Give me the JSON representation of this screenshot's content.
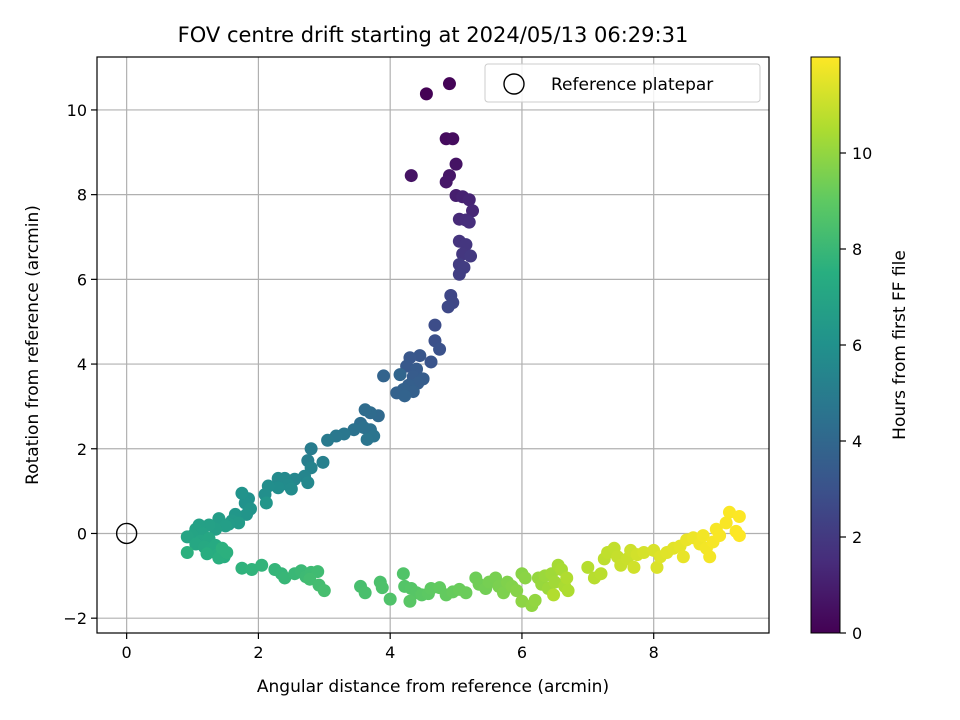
{
  "chart_data": {
    "type": "scatter",
    "title": "FOV centre drift starting at 2024/05/13 06:29:31",
    "xlabel": "Angular distance from reference (arcmin)",
    "ylabel": "Rotation from reference (arcmin)",
    "xlim": [
      -0.45,
      9.75
    ],
    "ylim": [
      -2.35,
      11.25
    ],
    "xticks": [
      0,
      2,
      4,
      6,
      8
    ],
    "yticks": [
      -2,
      0,
      2,
      4,
      6,
      8,
      10
    ],
    "grid": true,
    "legend": {
      "position": "upper-right",
      "entries": [
        "Reference platepar"
      ]
    },
    "reference_point": {
      "x": 0,
      "y": 0,
      "label": "Reference platepar"
    },
    "colorbar": {
      "label": "Hours from first FF file",
      "colormap": "viridis",
      "range": [
        0,
        12.0
      ],
      "ticks": [
        0,
        2,
        4,
        6,
        8,
        10
      ]
    },
    "series": [
      {
        "name": "",
        "points": [
          [
            4.55,
            10.38,
            0.05
          ],
          [
            4.9,
            10.62,
            0.1
          ],
          [
            4.85,
            9.32,
            0.35
          ],
          [
            4.95,
            9.32,
            0.4
          ],
          [
            5.0,
            8.72,
            0.6
          ],
          [
            4.32,
            8.45,
            0.6
          ],
          [
            4.9,
            8.45,
            0.7
          ],
          [
            4.85,
            8.3,
            0.75
          ],
          [
            5.0,
            7.98,
            1.0
          ],
          [
            5.1,
            7.95,
            1.1
          ],
          [
            5.2,
            7.88,
            1.2
          ],
          [
            5.25,
            7.62,
            1.3
          ],
          [
            5.05,
            7.42,
            1.4
          ],
          [
            5.15,
            7.4,
            1.5
          ],
          [
            5.2,
            7.35,
            1.55
          ],
          [
            5.05,
            6.9,
            1.8
          ],
          [
            5.15,
            6.82,
            1.85
          ],
          [
            5.1,
            6.6,
            1.9
          ],
          [
            5.22,
            6.55,
            2.0
          ],
          [
            5.05,
            6.35,
            2.1
          ],
          [
            5.12,
            6.28,
            2.15
          ],
          [
            5.05,
            6.12,
            2.2
          ],
          [
            4.92,
            5.62,
            2.5
          ],
          [
            4.95,
            5.45,
            2.55
          ],
          [
            4.88,
            5.35,
            2.6
          ],
          [
            4.68,
            4.92,
            2.8
          ],
          [
            4.68,
            4.55,
            2.9
          ],
          [
            4.75,
            4.35,
            3.0
          ],
          [
            4.62,
            4.05,
            3.1
          ],
          [
            4.45,
            4.2,
            3.2
          ],
          [
            4.3,
            4.15,
            3.25
          ],
          [
            4.25,
            3.95,
            3.3
          ],
          [
            4.4,
            3.88,
            3.4
          ],
          [
            4.35,
            3.7,
            3.45
          ],
          [
            4.5,
            3.65,
            3.5
          ],
          [
            4.42,
            3.55,
            3.55
          ],
          [
            4.28,
            3.5,
            3.6
          ],
          [
            4.35,
            3.35,
            3.65
          ],
          [
            4.2,
            3.4,
            3.7
          ],
          [
            4.1,
            3.32,
            3.75
          ],
          [
            4.22,
            3.25,
            3.8
          ],
          [
            3.9,
            3.72,
            3.85
          ],
          [
            4.15,
            3.75,
            3.9
          ],
          [
            3.82,
            2.78,
            4.1
          ],
          [
            3.7,
            2.85,
            4.15
          ],
          [
            3.62,
            2.92,
            4.2
          ],
          [
            3.55,
            2.6,
            4.3
          ],
          [
            3.7,
            2.45,
            4.4
          ],
          [
            3.6,
            2.5,
            4.45
          ],
          [
            3.45,
            2.45,
            4.5
          ],
          [
            3.75,
            2.3,
            4.6
          ],
          [
            3.65,
            2.22,
            4.65
          ],
          [
            3.3,
            2.35,
            4.75
          ],
          [
            3.18,
            2.3,
            4.8
          ],
          [
            3.05,
            2.2,
            4.9
          ],
          [
            2.8,
            2.0,
            5.0
          ],
          [
            2.75,
            1.72,
            5.1
          ],
          [
            2.98,
            1.68,
            5.2
          ],
          [
            2.8,
            1.55,
            5.3
          ],
          [
            2.7,
            1.35,
            5.4
          ],
          [
            2.55,
            1.28,
            5.5
          ],
          [
            2.75,
            1.2,
            5.55
          ],
          [
            2.4,
            1.3,
            5.6
          ],
          [
            2.3,
            1.3,
            5.65
          ],
          [
            2.45,
            1.15,
            5.7
          ],
          [
            2.5,
            1.05,
            5.75
          ],
          [
            2.3,
            1.08,
            5.8
          ],
          [
            2.15,
            1.12,
            5.85
          ],
          [
            2.1,
            0.92,
            5.9
          ],
          [
            1.85,
            0.82,
            6.0
          ],
          [
            1.8,
            0.72,
            6.05
          ],
          [
            1.75,
            0.95,
            6.1
          ],
          [
            1.88,
            0.58,
            6.15
          ],
          [
            1.82,
            0.45,
            6.2
          ],
          [
            2.12,
            0.72,
            6.25
          ],
          [
            1.65,
            0.45,
            6.3
          ],
          [
            1.6,
            0.3,
            6.4
          ],
          [
            1.7,
            0.25,
            6.45
          ],
          [
            1.55,
            0.22,
            6.5
          ],
          [
            1.4,
            0.35,
            6.6
          ],
          [
            1.5,
            0.18,
            6.65
          ],
          [
            1.35,
            0.1,
            6.7
          ],
          [
            1.25,
            0.2,
            6.75
          ],
          [
            1.1,
            0.2,
            6.8
          ],
          [
            1.05,
            0.1,
            6.85
          ],
          [
            1.15,
            0.0,
            6.9
          ],
          [
            1.0,
            -0.05,
            6.95
          ],
          [
            0.92,
            -0.08,
            7.0
          ],
          [
            1.12,
            -0.18,
            7.05
          ],
          [
            1.25,
            -0.12,
            7.1
          ],
          [
            1.05,
            -0.25,
            7.15
          ],
          [
            1.18,
            -0.32,
            7.2
          ],
          [
            1.28,
            -0.38,
            7.25
          ],
          [
            1.35,
            -0.28,
            7.3
          ],
          [
            1.45,
            -0.42,
            7.35
          ],
          [
            1.38,
            -0.5,
            7.4
          ],
          [
            1.22,
            -0.48,
            7.45
          ],
          [
            1.48,
            -0.55,
            7.5
          ],
          [
            1.4,
            -0.58,
            7.55
          ],
          [
            1.52,
            -0.45,
            7.6
          ],
          [
            1.45,
            -0.35,
            7.62
          ],
          [
            0.92,
            -0.45,
            7.6
          ],
          [
            1.75,
            -0.82,
            7.7
          ],
          [
            1.9,
            -0.85,
            7.75
          ],
          [
            2.05,
            -0.75,
            7.8
          ],
          [
            2.25,
            -0.85,
            7.85
          ],
          [
            2.35,
            -0.95,
            7.9
          ],
          [
            2.4,
            -1.05,
            7.95
          ],
          [
            2.55,
            -0.95,
            8.0
          ],
          [
            2.65,
            -0.88,
            8.05
          ],
          [
            2.72,
            -1.02,
            8.1
          ],
          [
            2.8,
            -0.92,
            8.15
          ],
          [
            2.9,
            -0.9,
            8.2
          ],
          [
            2.78,
            -1.08,
            8.25
          ],
          [
            2.92,
            -1.22,
            8.3
          ],
          [
            3.0,
            -1.35,
            8.35
          ],
          [
            3.55,
            -1.25,
            8.4
          ],
          [
            3.62,
            -1.4,
            8.45
          ],
          [
            3.85,
            -1.15,
            8.5
          ],
          [
            3.88,
            -1.28,
            8.55
          ],
          [
            4.0,
            -1.55,
            8.6
          ],
          [
            4.2,
            -0.95,
            8.65
          ],
          [
            4.22,
            -1.25,
            8.7
          ],
          [
            4.32,
            -1.3,
            8.75
          ],
          [
            4.4,
            -1.4,
            8.8
          ],
          [
            4.3,
            -1.6,
            8.85
          ],
          [
            4.48,
            -1.45,
            8.9
          ],
          [
            4.58,
            -1.42,
            8.95
          ],
          [
            4.62,
            -1.3,
            9.0
          ],
          [
            4.75,
            -1.28,
            9.05
          ],
          [
            4.85,
            -1.45,
            9.1
          ],
          [
            4.95,
            -1.38,
            9.15
          ],
          [
            5.05,
            -1.32,
            9.2
          ],
          [
            5.15,
            -1.4,
            9.25
          ],
          [
            5.3,
            -1.05,
            9.3
          ],
          [
            5.35,
            -1.2,
            9.35
          ],
          [
            5.45,
            -1.3,
            9.4
          ],
          [
            5.5,
            -1.15,
            9.45
          ],
          [
            5.6,
            -1.05,
            9.5
          ],
          [
            5.65,
            -1.25,
            9.55
          ],
          [
            5.72,
            -1.4,
            9.6
          ],
          [
            5.78,
            -1.15,
            9.65
          ],
          [
            5.85,
            -1.25,
            9.7
          ],
          [
            5.92,
            -1.35,
            9.75
          ],
          [
            6.0,
            -0.95,
            9.8
          ],
          [
            6.05,
            -1.05,
            9.85
          ],
          [
            6.0,
            -1.6,
            9.9
          ],
          [
            6.15,
            -1.7,
            9.95
          ],
          [
            6.2,
            -1.58,
            10.0
          ],
          [
            6.25,
            -1.05,
            10.05
          ],
          [
            6.3,
            -1.2,
            10.1
          ],
          [
            6.35,
            -1.0,
            10.15
          ],
          [
            6.4,
            -1.3,
            10.2
          ],
          [
            6.45,
            -0.95,
            10.25
          ],
          [
            6.5,
            -1.15,
            10.3
          ],
          [
            6.55,
            -0.75,
            10.35
          ],
          [
            6.6,
            -0.85,
            10.4
          ],
          [
            6.65,
            -1.25,
            10.45
          ],
          [
            6.7,
            -1.35,
            10.5
          ],
          [
            6.68,
            -1.05,
            10.55
          ],
          [
            6.48,
            -1.45,
            10.6
          ],
          [
            7.0,
            -0.8,
            10.65
          ],
          [
            7.1,
            -1.05,
            10.7
          ],
          [
            7.2,
            -0.95,
            10.75
          ],
          [
            7.25,
            -0.6,
            10.8
          ],
          [
            7.3,
            -0.45,
            10.85
          ],
          [
            7.4,
            -0.35,
            10.9
          ],
          [
            7.45,
            -0.55,
            10.95
          ],
          [
            7.5,
            -0.75,
            11.0
          ],
          [
            7.6,
            -0.6,
            11.05
          ],
          [
            7.65,
            -0.4,
            11.1
          ],
          [
            7.7,
            -0.8,
            11.15
          ],
          [
            7.75,
            -0.5,
            11.2
          ],
          [
            7.85,
            -0.45,
            11.25
          ],
          [
            8.0,
            -0.4,
            11.3
          ],
          [
            8.05,
            -0.8,
            11.35
          ],
          [
            8.1,
            -0.55,
            11.4
          ],
          [
            8.2,
            -0.45,
            11.45
          ],
          [
            8.3,
            -0.35,
            11.5
          ],
          [
            8.4,
            -0.3,
            11.55
          ],
          [
            8.45,
            -0.55,
            11.6
          ],
          [
            8.5,
            -0.15,
            11.65
          ],
          [
            8.6,
            -0.1,
            11.7
          ],
          [
            8.7,
            -0.25,
            11.75
          ],
          [
            8.75,
            -0.05,
            11.8
          ],
          [
            8.8,
            -0.35,
            11.82
          ],
          [
            8.85,
            -0.55,
            11.84
          ],
          [
            8.9,
            -0.2,
            11.86
          ],
          [
            8.95,
            0.1,
            11.88
          ],
          [
            9.0,
            -0.05,
            11.9
          ],
          [
            9.1,
            0.25,
            11.92
          ],
          [
            9.15,
            0.5,
            11.94
          ],
          [
            9.25,
            0.05,
            11.96
          ],
          [
            9.3,
            0.4,
            11.98
          ],
          [
            9.3,
            -0.05,
            12.0
          ]
        ]
      }
    ]
  }
}
